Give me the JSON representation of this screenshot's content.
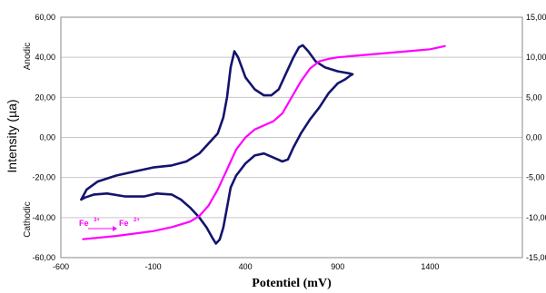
{
  "chart_data": {
    "type": "line",
    "xlabel": "Potentiel (mV)",
    "ylabel": "Intensity (µa)",
    "side_labels": {
      "top": "Anodic",
      "bottom": "Cathodic"
    },
    "annotation": {
      "from": "Fe",
      "from_sup": "3+",
      "to": "Fe",
      "to_sup": "2+"
    },
    "xlim": [
      -600,
      1900
    ],
    "x_ticks": [
      "-600",
      "-100",
      "400",
      "900",
      "1400"
    ],
    "y_left": {
      "lim": [
        -60,
        60
      ],
      "ticks": [
        "-60,00",
        "-40,00",
        "-20,00",
        "0,00",
        "20,00",
        "40,00",
        "60,00"
      ]
    },
    "y_right": {
      "lim": [
        -15,
        15
      ],
      "ticks": [
        "-15,00",
        "-10,00",
        "-5,00",
        "0,00",
        "5,00",
        "10,00",
        "15,00"
      ]
    },
    "grid": "horizontal",
    "colors": {
      "cv": "#14146e",
      "polar": "#ff00ff",
      "grid": "#c8c8c8"
    },
    "series": [
      {
        "axis": "left",
        "values": [
          [
            -490,
            -31
          ],
          [
            -460,
            -26
          ],
          [
            -400,
            -22
          ],
          [
            -300,
            -19
          ],
          [
            -200,
            -17
          ],
          [
            -100,
            -15
          ],
          [
            0,
            -14
          ],
          [
            80,
            -12
          ],
          [
            150,
            -8
          ],
          [
            200,
            -3
          ],
          [
            250,
            2
          ],
          [
            280,
            10
          ],
          [
            300,
            20
          ],
          [
            320,
            35
          ],
          [
            340,
            43
          ],
          [
            360,
            40
          ],
          [
            400,
            30
          ],
          [
            450,
            24
          ],
          [
            500,
            21
          ],
          [
            540,
            21
          ],
          [
            580,
            24
          ],
          [
            620,
            32
          ],
          [
            660,
            40
          ],
          [
            690,
            45
          ],
          [
            710,
            46
          ],
          [
            740,
            43
          ],
          [
            780,
            38
          ],
          [
            830,
            35
          ],
          [
            900,
            33
          ],
          [
            960,
            32
          ],
          [
            980,
            31.5
          ],
          [
            970,
            31
          ],
          [
            940,
            29
          ],
          [
            900,
            27
          ],
          [
            850,
            22
          ],
          [
            800,
            15
          ],
          [
            750,
            9
          ],
          [
            700,
            2
          ],
          [
            660,
            -5
          ],
          [
            630,
            -11
          ],
          [
            600,
            -12
          ],
          [
            550,
            -10
          ],
          [
            500,
            -8
          ],
          [
            450,
            -9
          ],
          [
            400,
            -13
          ],
          [
            350,
            -19
          ],
          [
            320,
            -25
          ],
          [
            300,
            -35
          ],
          [
            280,
            -45
          ],
          [
            260,
            -51
          ],
          [
            240,
            -53
          ],
          [
            220,
            -50
          ],
          [
            190,
            -45
          ],
          [
            150,
            -40
          ],
          [
            100,
            -35
          ],
          [
            50,
            -31
          ],
          [
            0,
            -28.5
          ],
          [
            -80,
            -28
          ],
          [
            -150,
            -29.5
          ],
          [
            -250,
            -29.5
          ],
          [
            -350,
            -28
          ],
          [
            -420,
            -28.5
          ],
          [
            -470,
            -30
          ],
          [
            -490,
            -31
          ]
        ]
      },
      {
        "axis": "right",
        "values": [
          [
            -480,
            -12.7
          ],
          [
            -300,
            -12.3
          ],
          [
            -100,
            -11.7
          ],
          [
            0,
            -11.2
          ],
          [
            100,
            -10.5
          ],
          [
            150,
            -9.8
          ],
          [
            200,
            -8.5
          ],
          [
            250,
            -6.5
          ],
          [
            300,
            -4
          ],
          [
            350,
            -1.5
          ],
          [
            400,
            0
          ],
          [
            450,
            1
          ],
          [
            500,
            1.5
          ],
          [
            550,
            2
          ],
          [
            600,
            3
          ],
          [
            650,
            5
          ],
          [
            700,
            7
          ],
          [
            750,
            8.6
          ],
          [
            800,
            9.5
          ],
          [
            850,
            9.8
          ],
          [
            900,
            10
          ],
          [
            1000,
            10.2
          ],
          [
            1100,
            10.4
          ],
          [
            1200,
            10.6
          ],
          [
            1300,
            10.8
          ],
          [
            1400,
            11
          ],
          [
            1480,
            11.4
          ]
        ]
      }
    ]
  }
}
